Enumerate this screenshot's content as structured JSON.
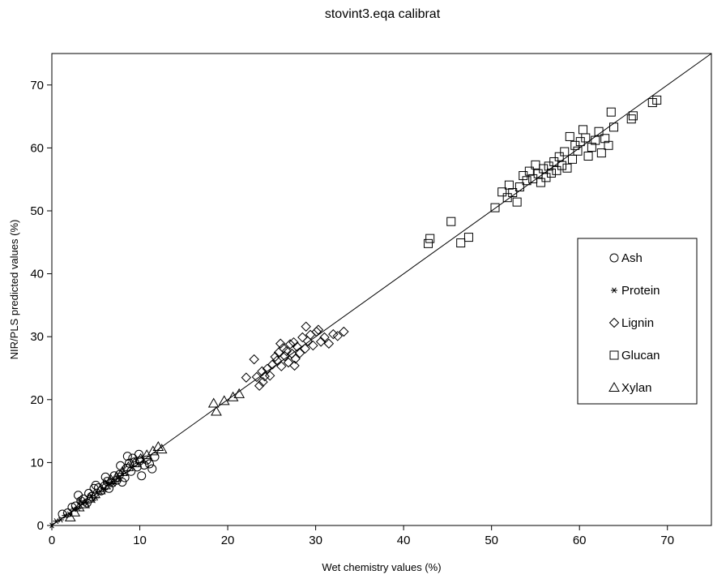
{
  "chart_data": {
    "type": "scatter",
    "title": "stovint3.eqa calibrat",
    "xlabel": "Wet chemistry values (%)",
    "ylabel": "NIR/PLS predicted values (%)",
    "xlim": [
      0,
      75
    ],
    "ylim": [
      0,
      75
    ],
    "xticks": [
      0,
      10,
      20,
      30,
      40,
      50,
      60,
      70
    ],
    "yticks": [
      0,
      10,
      20,
      30,
      40,
      50,
      60,
      70
    ],
    "grid": false,
    "legend_position": "right",
    "reference_line": {
      "from": [
        0,
        0
      ],
      "to": [
        75,
        75
      ]
    },
    "series": [
      {
        "name": "Ash",
        "marker": "circle",
        "points": [
          [
            1.2,
            1.8
          ],
          [
            1.8,
            2.0
          ],
          [
            2.3,
            2.9
          ],
          [
            2.7,
            3.1
          ],
          [
            3.0,
            4.8
          ],
          [
            3.3,
            3.9
          ],
          [
            3.6,
            4.2
          ],
          [
            4.0,
            3.6
          ],
          [
            4.2,
            5.1
          ],
          [
            4.5,
            4.6
          ],
          [
            4.8,
            5.9
          ],
          [
            5.0,
            6.4
          ],
          [
            5.3,
            6.0
          ],
          [
            5.6,
            5.5
          ],
          [
            6.0,
            6.3
          ],
          [
            6.3,
            7.0
          ],
          [
            6.5,
            5.9
          ],
          [
            6.9,
            6.8
          ],
          [
            7.1,
            7.9
          ],
          [
            7.4,
            7.2
          ],
          [
            7.7,
            8.1
          ],
          [
            8.0,
            6.9
          ],
          [
            8.3,
            7.6
          ],
          [
            8.5,
            9.1
          ],
          [
            8.8,
            9.9
          ],
          [
            9.0,
            8.6
          ],
          [
            9.2,
            10.7
          ],
          [
            9.4,
            10.1
          ],
          [
            9.7,
            9.3
          ],
          [
            10.0,
            10.3
          ],
          [
            10.2,
            7.9
          ],
          [
            10.5,
            9.6
          ],
          [
            10.8,
            10.4
          ],
          [
            11.1,
            9.8
          ],
          [
            11.4,
            9.0
          ],
          [
            11.7,
            10.9
          ],
          [
            8.6,
            11.0
          ],
          [
            9.9,
            11.3
          ],
          [
            7.8,
            9.5
          ],
          [
            6.1,
            7.7
          ]
        ]
      },
      {
        "name": "Protein",
        "marker": "star",
        "points": [
          [
            0.0,
            0.0
          ],
          [
            0.5,
            0.7
          ],
          [
            1.0,
            0.9
          ],
          [
            1.5,
            1.6
          ],
          [
            2.0,
            1.8
          ],
          [
            2.5,
            2.6
          ],
          [
            3.0,
            2.7
          ],
          [
            3.5,
            3.6
          ],
          [
            4.0,
            3.5
          ],
          [
            4.5,
            4.7
          ],
          [
            5.0,
            4.4
          ],
          [
            5.5,
            5.4
          ],
          [
            6.0,
            5.7
          ],
          [
            6.5,
            6.6
          ],
          [
            7.0,
            6.6
          ],
          [
            7.5,
            7.5
          ],
          [
            8.0,
            8.3
          ],
          [
            3.2,
            3.9
          ],
          [
            4.7,
            4.0
          ],
          [
            6.2,
            6.9
          ]
        ]
      },
      {
        "name": "Lignin",
        "marker": "diamond",
        "points": [
          [
            23.0,
            26.4
          ],
          [
            23.3,
            23.6
          ],
          [
            23.6,
            22.2
          ],
          [
            23.9,
            24.5
          ],
          [
            24.2,
            23.7
          ],
          [
            24.5,
            24.9
          ],
          [
            24.8,
            23.8
          ],
          [
            25.1,
            25.6
          ],
          [
            25.4,
            26.8
          ],
          [
            25.6,
            26.2
          ],
          [
            25.8,
            27.5
          ],
          [
            26.1,
            25.3
          ],
          [
            26.3,
            28.2
          ],
          [
            26.5,
            26.9
          ],
          [
            26.7,
            27.7
          ],
          [
            26.9,
            25.9
          ],
          [
            27.1,
            28.8
          ],
          [
            27.3,
            27.3
          ],
          [
            27.5,
            29.1
          ],
          [
            27.7,
            26.5
          ],
          [
            27.9,
            28.4
          ],
          [
            28.2,
            27.4
          ],
          [
            28.5,
            29.9
          ],
          [
            28.8,
            28.1
          ],
          [
            29.1,
            29.3
          ],
          [
            29.4,
            30.3
          ],
          [
            29.7,
            28.6
          ],
          [
            30.1,
            30.8
          ],
          [
            30.6,
            29.2
          ],
          [
            31.0,
            29.9
          ],
          [
            31.5,
            28.9
          ],
          [
            32.0,
            30.4
          ],
          [
            32.5,
            30.1
          ],
          [
            33.2,
            30.8
          ],
          [
            22.1,
            23.5
          ],
          [
            24.0,
            22.8
          ],
          [
            26.0,
            28.9
          ],
          [
            27.6,
            25.4
          ],
          [
            28.9,
            31.6
          ],
          [
            30.3,
            31.1
          ]
        ]
      },
      {
        "name": "Glucan",
        "marker": "square",
        "points": [
          [
            42.8,
            44.8
          ],
          [
            43.0,
            45.6
          ],
          [
            45.4,
            48.3
          ],
          [
            46.5,
            44.9
          ],
          [
            47.4,
            45.8
          ],
          [
            50.4,
            50.5
          ],
          [
            51.2,
            53.0
          ],
          [
            51.8,
            52.1
          ],
          [
            52.0,
            54.1
          ],
          [
            52.4,
            52.9
          ],
          [
            52.9,
            51.4
          ],
          [
            53.2,
            53.8
          ],
          [
            53.6,
            55.6
          ],
          [
            54.0,
            54.8
          ],
          [
            54.3,
            56.3
          ],
          [
            54.7,
            55.1
          ],
          [
            55.0,
            57.3
          ],
          [
            55.3,
            55.9
          ],
          [
            55.6,
            54.5
          ],
          [
            55.9,
            56.7
          ],
          [
            56.2,
            55.3
          ],
          [
            56.5,
            57.1
          ],
          [
            56.8,
            56.0
          ],
          [
            57.1,
            57.8
          ],
          [
            57.4,
            56.4
          ],
          [
            57.7,
            58.6
          ],
          [
            58.0,
            57.2
          ],
          [
            58.3,
            59.4
          ],
          [
            58.6,
            56.8
          ],
          [
            58.9,
            61.8
          ],
          [
            59.2,
            58.2
          ],
          [
            59.5,
            60.4
          ],
          [
            59.8,
            59.5
          ],
          [
            60.1,
            61.0
          ],
          [
            60.4,
            62.9
          ],
          [
            60.7,
            61.6
          ],
          [
            61.0,
            58.7
          ],
          [
            61.4,
            60.1
          ],
          [
            61.8,
            61.2
          ],
          [
            62.2,
            62.6
          ],
          [
            62.5,
            59.2
          ],
          [
            62.9,
            61.5
          ],
          [
            63.3,
            60.4
          ],
          [
            63.6,
            65.7
          ],
          [
            63.9,
            63.3
          ],
          [
            65.9,
            64.6
          ],
          [
            66.1,
            65.1
          ],
          [
            68.3,
            67.2
          ],
          [
            68.8,
            67.6
          ]
        ]
      },
      {
        "name": "Xylan",
        "marker": "triangle",
        "points": [
          [
            2.1,
            1.3
          ],
          [
            2.6,
            2.1
          ],
          [
            3.1,
            2.9
          ],
          [
            3.7,
            3.4
          ],
          [
            4.3,
            4.3
          ],
          [
            4.9,
            5.0
          ],
          [
            5.5,
            5.6
          ],
          [
            6.1,
            6.4
          ],
          [
            6.7,
            7.3
          ],
          [
            7.3,
            7.6
          ],
          [
            8.0,
            8.5
          ],
          [
            8.7,
            9.3
          ],
          [
            9.4,
            9.9
          ],
          [
            10.1,
            10.6
          ],
          [
            10.8,
            11.2
          ],
          [
            11.5,
            11.8
          ],
          [
            12.1,
            12.5
          ],
          [
            12.5,
            12.1
          ],
          [
            18.4,
            19.4
          ],
          [
            18.7,
            18.1
          ],
          [
            19.6,
            19.8
          ],
          [
            20.6,
            20.4
          ],
          [
            21.3,
            20.9
          ]
        ]
      }
    ]
  }
}
